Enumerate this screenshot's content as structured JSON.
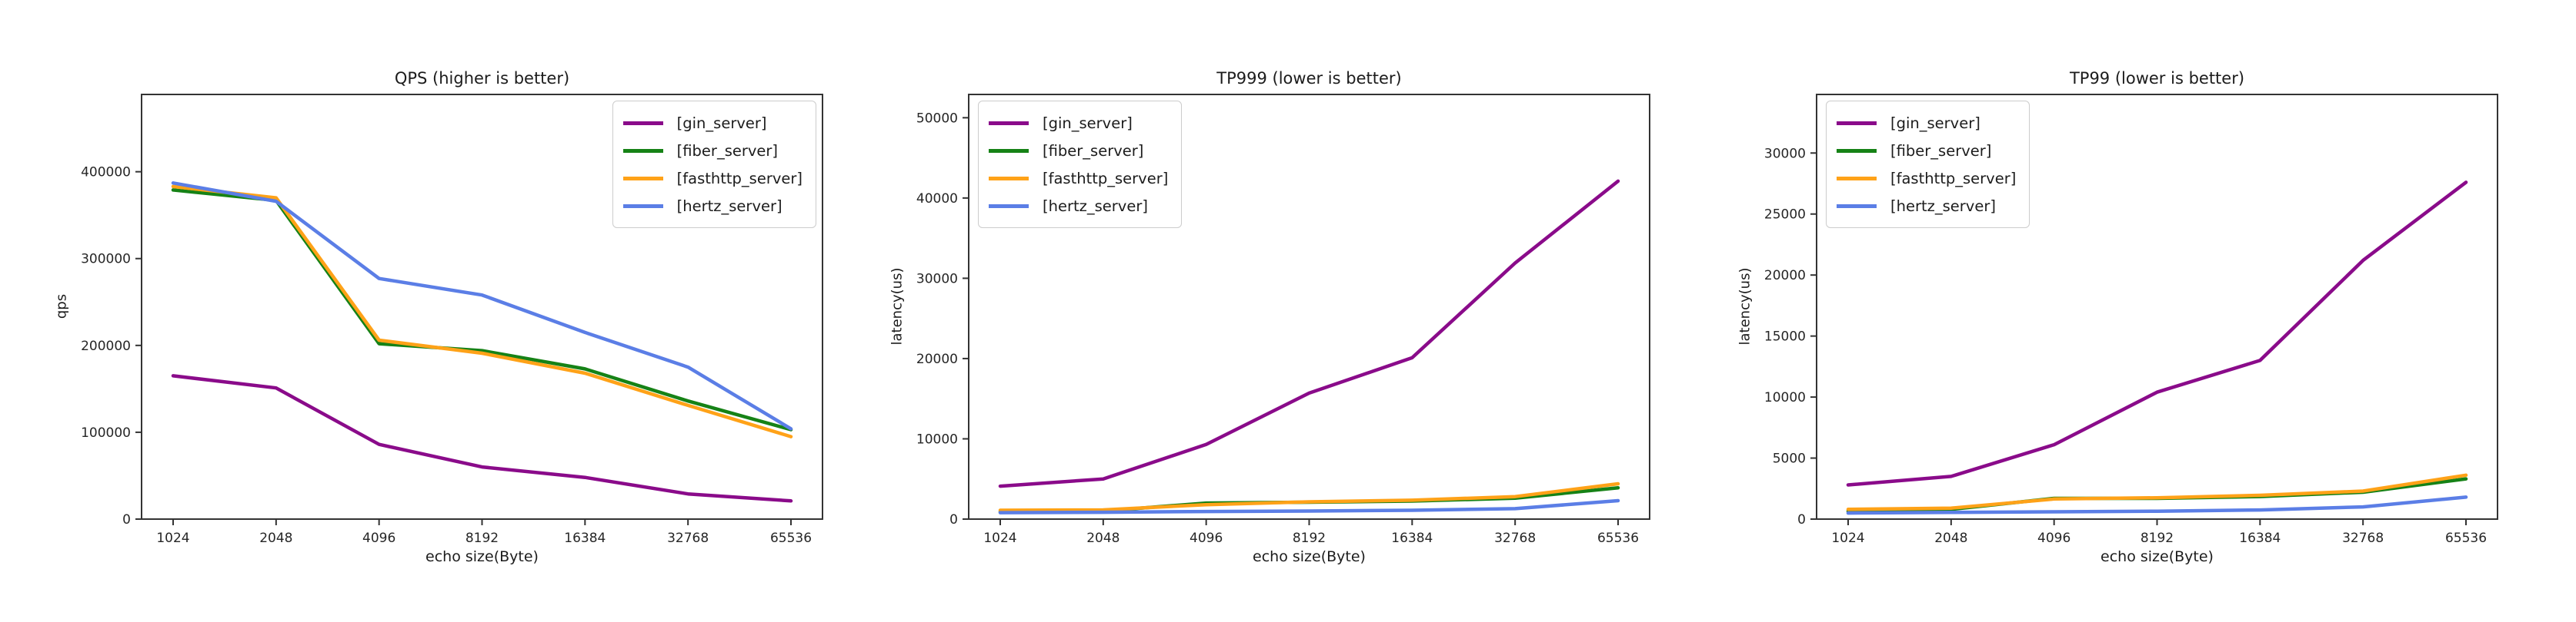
{
  "page": {
    "background": "#ffffff"
  },
  "chart_data": [
    {
      "type": "line",
      "title": "QPS (higher is better)",
      "xlabel": "echo size(Byte)",
      "ylabel": "qps",
      "categories": [
        "1024",
        "2048",
        "4096",
        "8192",
        "16384",
        "32768",
        "65536"
      ],
      "y_ticks": [
        0,
        100000,
        200000,
        300000,
        400000
      ],
      "ylim": [
        0,
        489000
      ],
      "grid": false,
      "legend_position": "upper-right",
      "series": [
        {
          "name": "[gin_server]",
          "color": "#8a0b8a",
          "values": [
            165000,
            151000,
            86000,
            60000,
            48000,
            29000,
            21000
          ]
        },
        {
          "name": "[fiber_server]",
          "color": "#168216",
          "values": [
            379000,
            367000,
            202000,
            194000,
            173000,
            136000,
            103000
          ]
        },
        {
          "name": "[fasthttp_server]",
          "color": "#ffa218",
          "values": [
            383000,
            370000,
            206000,
            191000,
            168000,
            131000,
            95000
          ]
        },
        {
          "name": "[hertz_server]",
          "color": "#5b7ee6",
          "values": [
            387000,
            366000,
            277000,
            258000,
            215000,
            175000,
            104000
          ]
        }
      ]
    },
    {
      "type": "line",
      "title": "TP999 (lower is better)",
      "xlabel": "echo size(Byte)",
      "ylabel": "latency(us)",
      "categories": [
        "1024",
        "2048",
        "4096",
        "8192",
        "16384",
        "32768",
        "65536"
      ],
      "y_ticks": [
        0,
        10000,
        20000,
        30000,
        40000,
        50000
      ],
      "ylim": [
        0,
        52900
      ],
      "grid": false,
      "legend_position": "upper-left",
      "series": [
        {
          "name": "[gin_server]",
          "color": "#8a0b8a",
          "values": [
            4100,
            5000,
            9300,
            15700,
            20100,
            31900,
            42100
          ]
        },
        {
          "name": "[fiber_server]",
          "color": "#168216",
          "values": [
            900,
            1000,
            2000,
            2100,
            2250,
            2600,
            3900
          ]
        },
        {
          "name": "[fasthttp_server]",
          "color": "#ffa218",
          "values": [
            1100,
            1150,
            1800,
            2150,
            2350,
            2800,
            4400
          ]
        },
        {
          "name": "[hertz_server]",
          "color": "#5b7ee6",
          "values": [
            800,
            850,
            950,
            1000,
            1100,
            1300,
            2300
          ]
        }
      ]
    },
    {
      "type": "line",
      "title": "TP99 (lower is better)",
      "xlabel": "echo size(Byte)",
      "ylabel": "latency(us)",
      "categories": [
        "1024",
        "2048",
        "4096",
        "8192",
        "16384",
        "32768",
        "65536"
      ],
      "y_ticks": [
        0,
        5000,
        10000,
        15000,
        20000,
        25000,
        30000
      ],
      "ylim": [
        0,
        34800
      ],
      "grid": false,
      "legend_position": "upper-left",
      "series": [
        {
          "name": "[gin_server]",
          "color": "#8a0b8a",
          "values": [
            2800,
            3500,
            6100,
            10400,
            13000,
            21200,
            27600
          ]
        },
        {
          "name": "[fiber_server]",
          "color": "#168216",
          "values": [
            650,
            800,
            1700,
            1700,
            1850,
            2200,
            3300
          ]
        },
        {
          "name": "[fasthttp_server]",
          "color": "#ffa218",
          "values": [
            800,
            900,
            1650,
            1750,
            1950,
            2300,
            3600
          ]
        },
        {
          "name": "[hertz_server]",
          "color": "#5b7ee6",
          "values": [
            500,
            550,
            600,
            650,
            750,
            1000,
            1800
          ]
        }
      ]
    }
  ]
}
